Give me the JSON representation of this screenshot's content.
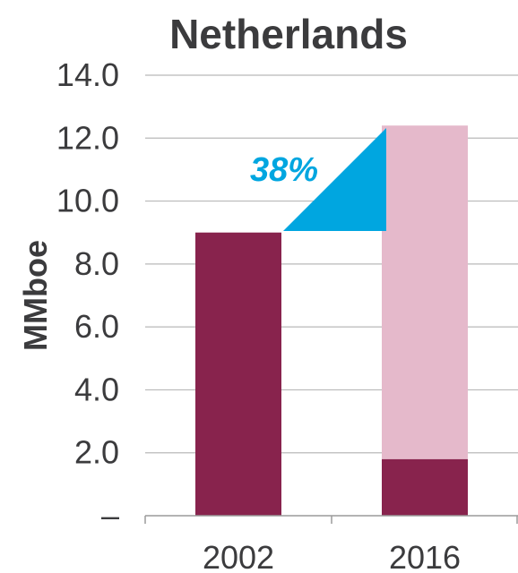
{
  "chart_data": {
    "type": "bar",
    "title": "Netherlands",
    "xlabel": "",
    "ylabel": "MMboe",
    "categories": [
      "2002",
      "2016"
    ],
    "ylim": [
      0,
      14
    ],
    "ytick_labels": [
      "–",
      "2.0",
      "4.0",
      "6.0",
      "8.0",
      "10.0",
      "12.0",
      "14.0"
    ],
    "stacked": true,
    "series": [
      {
        "values": [
          9.0,
          1.8
        ],
        "color": "#88234d"
      },
      {
        "values": [
          0,
          10.6
        ],
        "color": "#e5b9cb"
      }
    ],
    "annotation": {
      "text": "38%",
      "color": "#00a6e0",
      "shape": "right-triangle"
    },
    "grid": true,
    "legend": "none"
  }
}
